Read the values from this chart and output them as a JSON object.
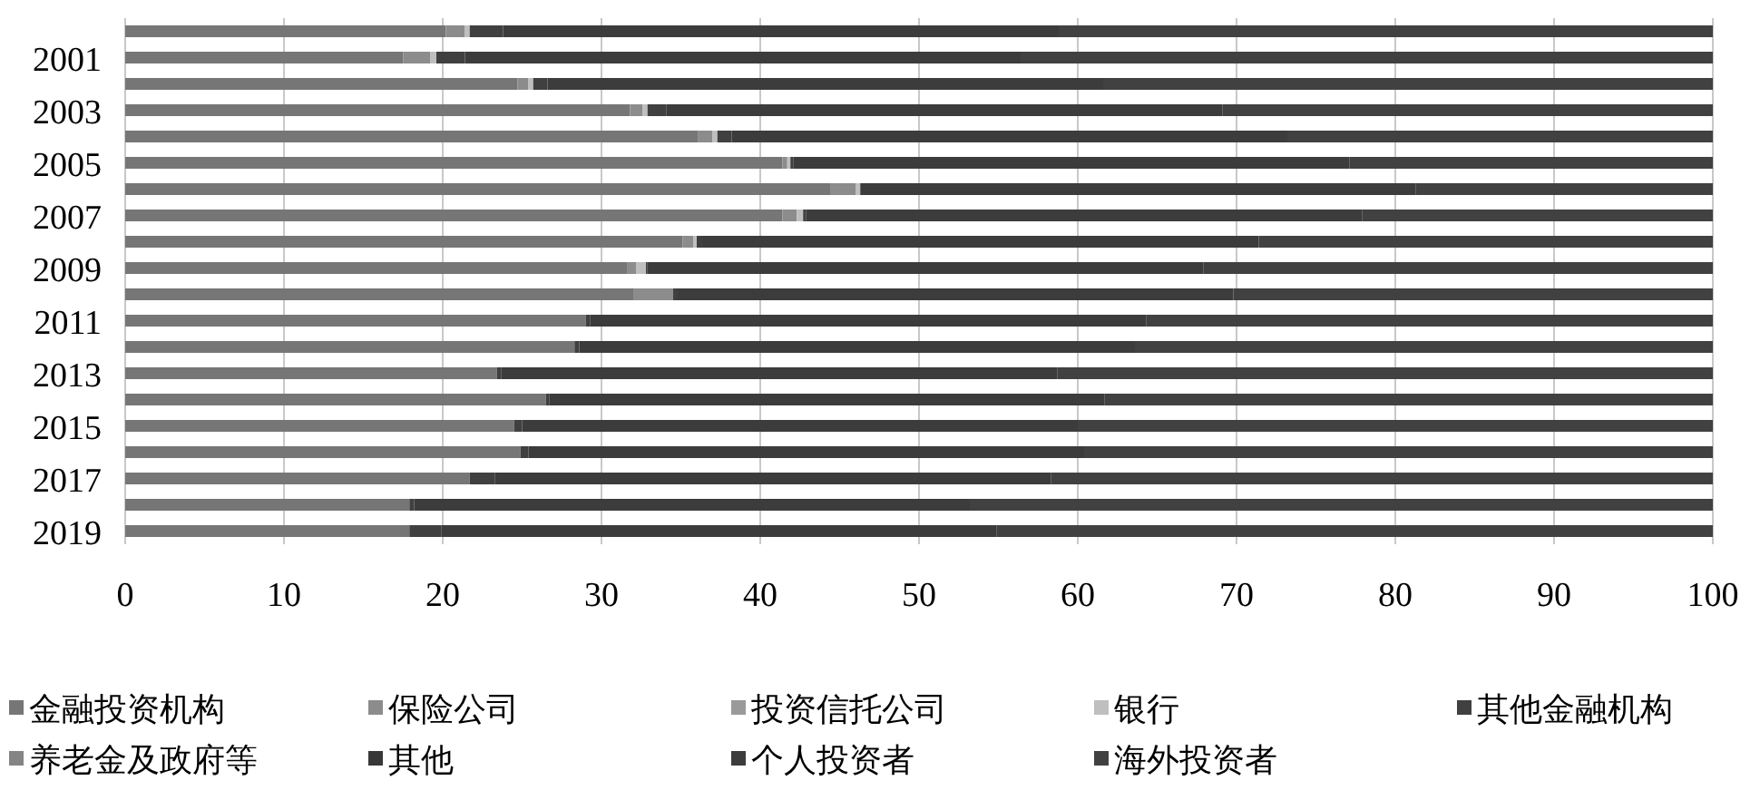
{
  "chart_data": {
    "type": "bar",
    "orientation": "horizontal",
    "stacked": true,
    "legend": "bottom",
    "grid": "x",
    "categories": [
      null,
      "2001",
      null,
      "2003",
      null,
      "2005",
      null,
      "2007",
      null,
      "2009",
      null,
      "2011",
      null,
      "2013",
      null,
      "2015",
      null,
      "2017",
      null,
      "2019"
    ],
    "xlim": [
      0,
      100
    ],
    "xticks": [
      0,
      10,
      20,
      30,
      40,
      50,
      60,
      70,
      80,
      90,
      100
    ],
    "series": [
      {
        "name": "金融投资机构",
        "color": "#767676",
        "values": [
          20.2,
          17.5,
          24.7,
          31.8,
          36.1,
          41.4,
          44.4,
          41.4,
          35.1,
          31.6,
          32.0,
          29.0,
          28.3,
          23.4,
          26.5,
          24.5,
          24.9,
          21.7,
          17.9,
          17.9
        ]
      },
      {
        "name": "保险公司",
        "color": "#8c8c8c",
        "values": [
          1.2,
          1.7,
          0.7,
          0.8,
          0.9,
          0.3,
          1.6,
          0.9,
          0.7,
          0.6,
          2.5,
          0,
          0,
          0,
          0,
          0,
          0,
          0,
          0,
          0
        ]
      },
      {
        "name": "投资信托公司",
        "color": "#9a9a9a",
        "values": [
          0,
          0,
          0,
          0,
          0,
          0,
          0,
          0,
          0,
          0,
          0,
          0,
          0,
          0,
          0,
          0,
          0,
          0,
          0,
          0
        ]
      },
      {
        "name": "银行",
        "color": "#bfbfbf",
        "values": [
          0.3,
          0.4,
          0.3,
          0.3,
          0.3,
          0.2,
          0.3,
          0.4,
          0.2,
          0.6,
          0,
          0,
          0,
          0,
          0,
          0,
          0,
          0,
          0,
          0
        ]
      },
      {
        "name": "其他金融机构",
        "color": "#404040",
        "values": [
          2.1,
          1.8,
          0.9,
          1.2,
          0.9,
          0.2,
          0,
          0.2,
          0.4,
          0.1,
          0.3,
          0.3,
          0.3,
          0.3,
          0.2,
          0.5,
          0.5,
          1.6,
          0.3,
          2.0
        ]
      },
      {
        "name": "养老金及政府等",
        "color": "#848484",
        "values": [
          0,
          0,
          0,
          0,
          0,
          0,
          0,
          0,
          0,
          0,
          0,
          0,
          0,
          0,
          0,
          0,
          0,
          0,
          0,
          0
        ]
      },
      {
        "name": "其他",
        "color": "#383838",
        "values": [
          0,
          0,
          0,
          0,
          0,
          0,
          0,
          0,
          0,
          0,
          0,
          0,
          0,
          0,
          0,
          0,
          0,
          0,
          0,
          0
        ]
      },
      {
        "name": "个人投资者",
        "color": "#3c3c3c",
        "values": [
          35,
          35,
          35,
          35,
          35,
          35,
          35,
          35,
          35,
          35,
          35,
          35,
          35,
          35,
          35,
          35,
          35,
          35,
          35,
          35
        ]
      },
      {
        "name": "海外投资者",
        "color": "#414141",
        "values": [
          41.2,
          43.6,
          38.4,
          30.9,
          26.8,
          22.9,
          18.7,
          22.1,
          28.6,
          32.1,
          30.2,
          35.7,
          36.4,
          41.3,
          38.3,
          40,
          39.6,
          41.7,
          46.8,
          45.1
        ]
      }
    ]
  }
}
